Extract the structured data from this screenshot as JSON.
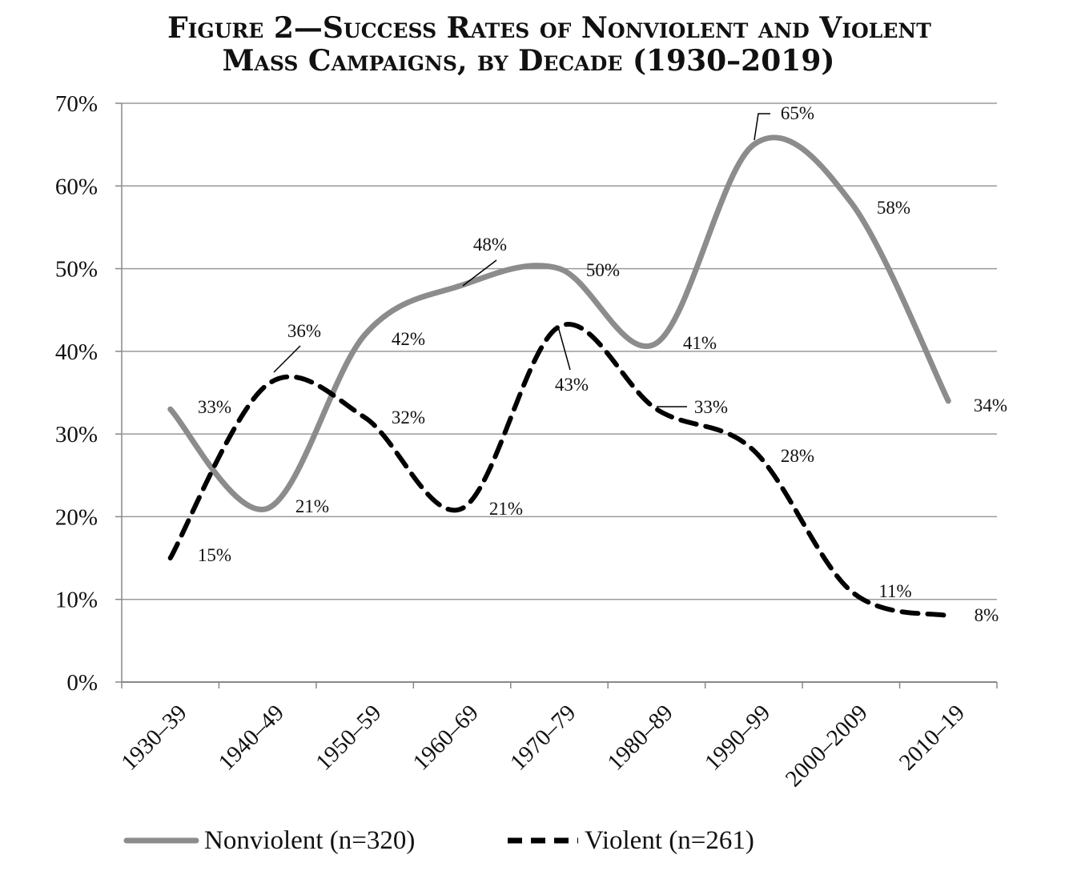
{
  "chart_data": {
    "type": "line",
    "title": [
      "Figure 2—Success Rates of Nonviolent and Violent",
      "Mass Campaigns, by Decade (1930–2019)"
    ],
    "xlabel": "",
    "ylabel": "",
    "categories": [
      "1930–39",
      "1940–49",
      "1950–59",
      "1960–69",
      "1970–79",
      "1980–89",
      "1990–99",
      "2000–2009",
      "2010–19"
    ],
    "ylim": [
      0,
      70
    ],
    "yticks": [
      "0%",
      "10%",
      "20%",
      "30%",
      "40%",
      "50%",
      "60%",
      "70%"
    ],
    "grid": true,
    "legend_placement": "bottom",
    "series": [
      {
        "name": "Nonviolent (n=320)",
        "color": "#8c8c8c",
        "style": "solid",
        "smooth": true,
        "values": [
          33,
          21,
          42,
          48,
          50,
          41,
          65,
          58,
          34
        ],
        "labels": [
          "33%",
          "21%",
          "42%",
          "48%",
          "50%",
          "41%",
          "65%",
          "58%",
          "34%"
        ]
      },
      {
        "name": "Violent (n=261)",
        "color": "#000000",
        "style": "dashed",
        "smooth": true,
        "values": [
          15,
          36,
          32,
          21,
          43,
          33,
          28,
          11,
          8
        ],
        "labels": [
          "15%",
          "36%",
          "32%",
          "21%",
          "43%",
          "33%",
          "28%",
          "11%",
          "8%"
        ]
      }
    ]
  }
}
